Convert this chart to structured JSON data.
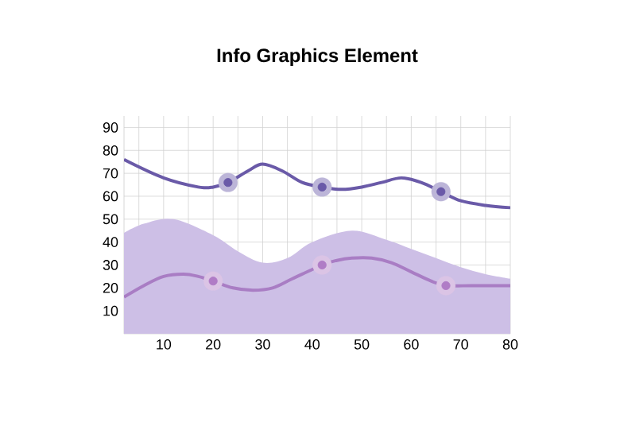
{
  "chart_data": {
    "type": "line",
    "title": "Info Graphics Element",
    "xlim": [
      2,
      80
    ],
    "ylim": [
      0,
      95
    ],
    "xticks": [
      10,
      20,
      30,
      40,
      50,
      60,
      70,
      80
    ],
    "yticks": [
      10,
      20,
      30,
      40,
      50,
      60,
      70,
      80,
      90
    ],
    "grid": true,
    "series": [
      {
        "type": "area",
        "color": "#cdbfe6",
        "x": [
          2,
          6,
          12,
          20,
          25,
          30,
          35,
          40,
          48,
          55,
          60,
          65,
          70,
          75,
          80
        ],
        "values": [
          44,
          48,
          50,
          43,
          36,
          31,
          33,
          40,
          45,
          41,
          37,
          33,
          29,
          26,
          24
        ]
      },
      {
        "color": "#6a5aa8",
        "x": [
          2,
          10,
          17,
          20,
          23,
          27,
          30,
          34,
          38,
          42,
          46,
          50,
          54,
          58,
          62,
          66,
          70,
          75,
          80
        ],
        "values": [
          76,
          68,
          64,
          64,
          66,
          71,
          74,
          71,
          66,
          64,
          63,
          64,
          66,
          68,
          66,
          62,
          58,
          56,
          55
        ]
      },
      {
        "color": "#a97dc4",
        "x": [
          2,
          6,
          10,
          14,
          17,
          20,
          24,
          28,
          32,
          36,
          42,
          45,
          48,
          52,
          56,
          60,
          64,
          67,
          72,
          76,
          80
        ],
        "values": [
          16,
          21,
          25,
          26,
          25,
          23,
          20,
          19,
          20,
          24,
          30,
          32,
          33,
          33,
          31,
          27,
          23,
          21,
          21,
          21,
          21
        ]
      },
      {
        "type": "scatter",
        "color": "#6a5aa8",
        "marker": "circle",
        "x": [
          23,
          42,
          66
        ],
        "values": [
          66,
          64,
          62
        ]
      },
      {
        "type": "scatter",
        "color": "#b07cc6",
        "marker": "circle",
        "x": [
          20,
          42,
          67
        ],
        "values": [
          23,
          30,
          21
        ]
      }
    ]
  }
}
